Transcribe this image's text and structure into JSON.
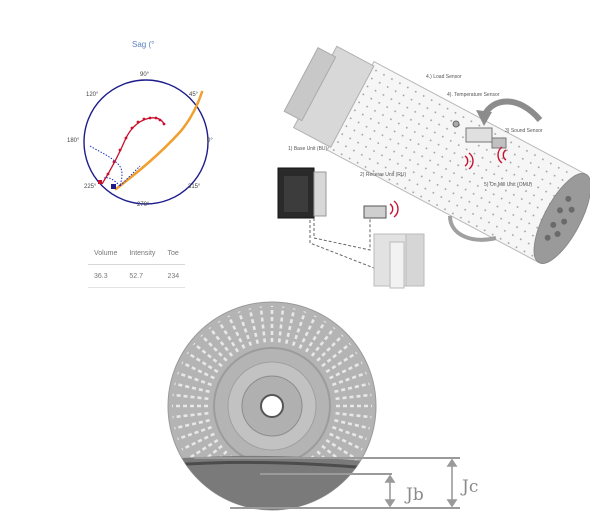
{
  "polar": {
    "title": "Sag (°",
    "angles": {
      "a90": "90°",
      "a120": "120°",
      "a45": "45°",
      "a180": "180°",
      "a0": "0°",
      "a225": "225°",
      "a315": "315°",
      "a270": "270°"
    }
  },
  "table": {
    "headers": [
      "Volume",
      "Intensity",
      "Toe"
    ],
    "values": [
      "36.3",
      "52.7",
      "234"
    ]
  },
  "mill_diagram": {
    "labels": {
      "load_sensor": "4.)  Load Sensor",
      "temp_sensor": "4).  Temperature Sensor",
      "sound_sensor": "3)  Sound Sensor",
      "base_unit": "1)  Base Unit (BU)",
      "receive_unit": "2)  Receive Unit (RU)",
      "on_mill_unit": "5)  On Mill Unit (OMU)"
    }
  },
  "cross_section": {
    "dim_jb": "Jb",
    "dim_jc": "Jc"
  },
  "colors": {
    "polar_circle": "#1c1c8c",
    "polar_blue_dots": "#2030c0",
    "polar_red": "#c8102e",
    "polar_orange": "#f0a030",
    "mill_gray": "#a8a8a8"
  }
}
